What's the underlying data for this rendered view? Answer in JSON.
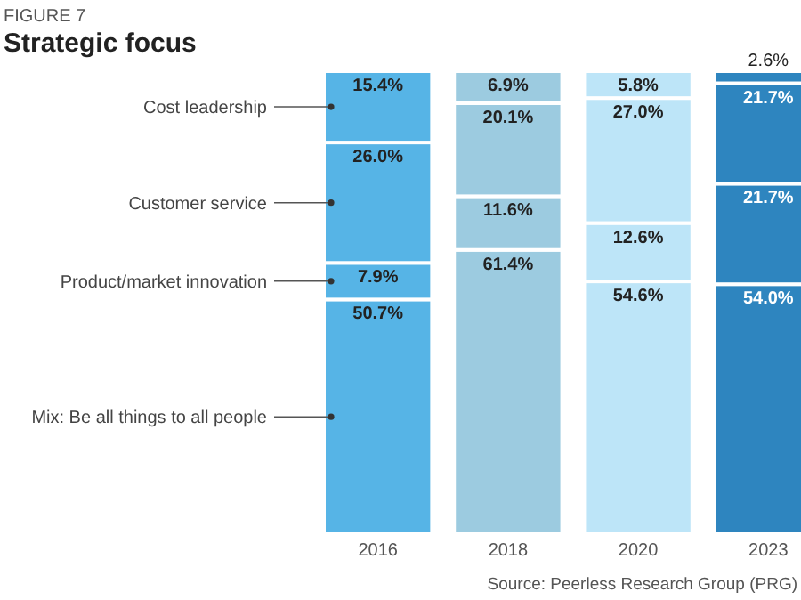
{
  "chart_data": {
    "type": "bar",
    "stacked": true,
    "title": "Strategic focus",
    "annotations": [
      "FIGURE 7",
      "Source: Peerless Research Group (PRG)"
    ],
    "categories": [
      "2016",
      "2018",
      "2020",
      "2023"
    ],
    "series": [
      {
        "name": "Mix: Be all things to all people",
        "colors": [
          "#56b4e6",
          "#9ccbe0",
          "#bde5f8",
          "#2e85bf"
        ],
        "values": [
          50.7,
          61.4,
          54.6,
          54.0
        ],
        "value_labels": [
          "50.7%",
          "61.4%",
          "54.6%",
          "54.0%"
        ]
      },
      {
        "name": "Product/market innovation",
        "colors": [
          "#56b4e6",
          "#9ccbe0",
          "#bde5f8",
          "#2e85bf"
        ],
        "values": [
          7.9,
          11.6,
          12.6,
          21.7
        ],
        "value_labels": [
          "7.9%",
          "11.6%",
          "12.6%",
          "21.7%"
        ]
      },
      {
        "name": "Customer service",
        "colors": [
          "#56b4e6",
          "#9ccbe0",
          "#bde5f8",
          "#2e85bf"
        ],
        "values": [
          26.0,
          20.1,
          27.0,
          21.7
        ],
        "value_labels": [
          "26.0%",
          "20.1%",
          "27.0%",
          "21.7%"
        ]
      },
      {
        "name": "Cost leadership",
        "colors": [
          "#56b4e6",
          "#9ccbe0",
          "#bde5f8",
          "#2e85bf"
        ],
        "values": [
          15.4,
          6.9,
          5.8,
          2.6
        ],
        "value_labels": [
          "15.4%",
          "6.9%",
          "5.8%",
          "2.6%"
        ]
      }
    ]
  }
}
